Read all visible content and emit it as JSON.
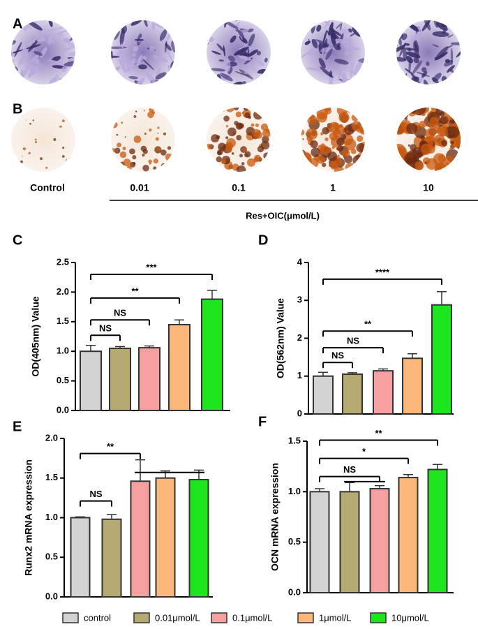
{
  "figure": {
    "panel_labels": [
      "A",
      "B",
      "C",
      "D",
      "E",
      "F"
    ],
    "image_labels": [
      "Control",
      "0.01",
      "0.1",
      "1",
      "10"
    ],
    "group_label": "Res+OIC(μmol/L)"
  },
  "legend": {
    "names": [
      "control",
      "0.01μmol/L",
      "0.1μmol/L",
      "1μmol/L",
      "10μmol/L"
    ],
    "colors": [
      "#d3d3d3",
      "#b5aa72",
      "#f4a0a0",
      "#fbb87a",
      "#1ee61e"
    ]
  },
  "chart_data": [
    {
      "type": "bar",
      "y_label": "OD(405nm)  Value",
      "values": [
        1.0,
        1.05,
        1.06,
        1.45,
        1.88
      ],
      "errors": [
        0.1,
        0.03,
        0.03,
        0.08,
        0.15
      ],
      "ylim": [
        0,
        2.5
      ],
      "yticks": [
        {
          "value": 0,
          "label": "0.0"
        },
        {
          "value": 0.5,
          "label": "0.5"
        },
        {
          "value": 1,
          "label": "1.0"
        },
        {
          "value": 1.5,
          "label": "1.5"
        },
        {
          "value": 2,
          "label": "2.0"
        },
        {
          "value": 2.5,
          "label": "2.5"
        }
      ],
      "annotations": [
        {
          "text": "NS",
          "from": 0,
          "to": 1,
          "y": 1.27
        },
        {
          "text": "NS",
          "from": 0,
          "to": 2,
          "y": 1.53
        },
        {
          "text": "**",
          "from": 0,
          "to": 3,
          "y": 1.9
        },
        {
          "text": "***",
          "from": 0,
          "to": 4,
          "y": 2.3
        }
      ]
    },
    {
      "type": "bar",
      "y_label": "OD(562nm)  Value",
      "values": [
        1.0,
        1.05,
        1.14,
        1.47,
        2.88
      ],
      "errors": [
        0.1,
        0.04,
        0.05,
        0.12,
        0.35
      ],
      "ylim": [
        0,
        4
      ],
      "yticks": [
        0,
        1,
        2,
        3,
        4
      ],
      "annotations": [
        {
          "text": "NS",
          "from": 0,
          "to": 1,
          "y": 1.36
        },
        {
          "text": "NS",
          "from": 0,
          "to": 2,
          "y": 1.75
        },
        {
          "text": "**",
          "from": 0,
          "to": 3,
          "y": 2.19
        },
        {
          "text": "****",
          "from": 0,
          "to": 4,
          "y": 3.56
        }
      ]
    },
    {
      "type": "bar",
      "y_label": "Runx2 mRNA expression",
      "values": [
        1.0,
        0.98,
        1.46,
        1.5,
        1.48
      ],
      "errors": [
        0.01,
        0.06,
        0.27,
        0.09,
        0.12
      ],
      "ylim": [
        0,
        2
      ],
      "yticks": [
        {
          "value": 0,
          "label": "0.0"
        },
        {
          "value": 0.5,
          "label": "0.5"
        },
        {
          "value": 1,
          "label": "1.0"
        },
        {
          "value": 1.5,
          "label": "1.5"
        },
        {
          "value": 2,
          "label": "2.0"
        }
      ],
      "annotations": [
        {
          "text": "NS",
          "from": 0,
          "to": 1,
          "y": 1.21
        },
        {
          "text": "**",
          "from": 0,
          "to": 2,
          "y": 1.81
        },
        {
          "from": 2,
          "to": 4,
          "y": 1.57
        }
      ]
    },
    {
      "type": "bar",
      "y_label": "OCN mRNA expression",
      "values": [
        1.0,
        1.0,
        1.03,
        1.14,
        1.22
      ],
      "errors": [
        0.03,
        0.09,
        0.03,
        0.03,
        0.05
      ],
      "ylim": [
        0,
        1.5
      ],
      "yticks": [
        {
          "value": 0,
          "label": "0.0"
        },
        {
          "value": 0.5,
          "label": "0.5"
        },
        {
          "value": 1,
          "label": "1.0"
        },
        {
          "value": 1.5,
          "label": "1.5"
        }
      ],
      "annotations": [
        {
          "text": "NS",
          "from": 0,
          "to": 2,
          "y": 1.15
        },
        {
          "from": 1,
          "to": 2,
          "y": 1.1
        },
        {
          "text": "*",
          "from": 0,
          "to": 3,
          "y": 1.33
        },
        {
          "text": "**",
          "from": 0,
          "to": 4,
          "y": 1.51
        }
      ]
    }
  ]
}
